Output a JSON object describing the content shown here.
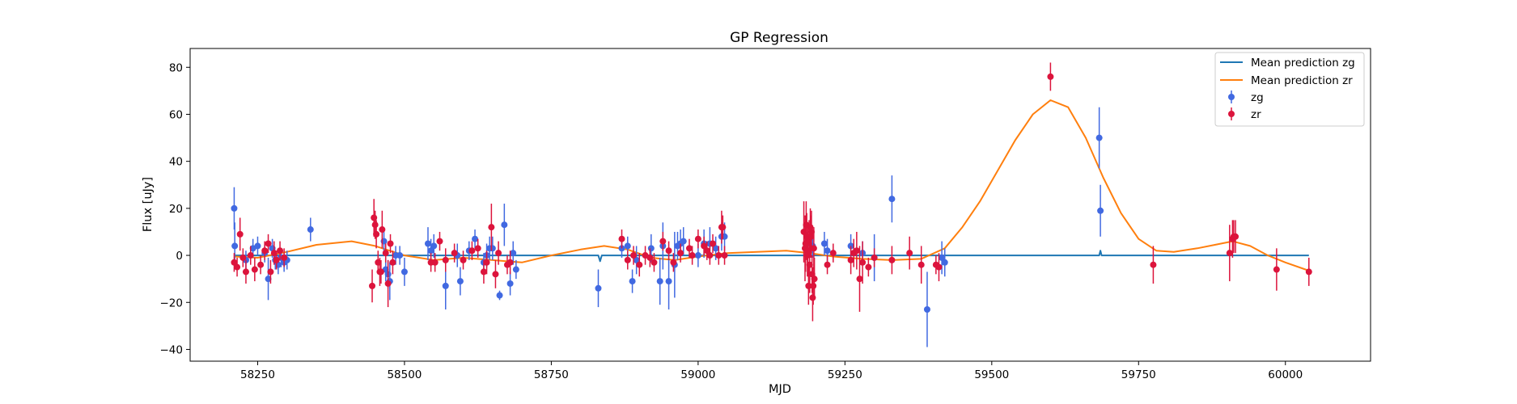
{
  "chart_data": {
    "type": "scatter",
    "title": "GP Regression",
    "xlabel": "MJD",
    "ylabel": "Flux [uJy]",
    "xlim": [
      58135,
      60145
    ],
    "ylim": [
      -45,
      88
    ],
    "xticks": [
      58250,
      58500,
      58750,
      59000,
      59250,
      59500,
      59750,
      60000
    ],
    "yticks": [
      -40,
      -20,
      0,
      20,
      40,
      60,
      80
    ],
    "grid": false,
    "legend_position": "top-right",
    "legend": {
      "line_zg": "Mean prediction zg",
      "line_zr": "Mean prediction zr",
      "points_zg": "zg",
      "points_zr": "zr"
    },
    "colors": {
      "line_zg": "#1f77b4",
      "line_zr": "#ff7f0e",
      "points_zg": "#4169e1",
      "points_zr": "#dc143c"
    },
    "mean_prediction_zg": {
      "x": [
        58210,
        58830,
        58833,
        58836,
        59683,
        59685,
        59687,
        60040
      ],
      "y": [
        0,
        0,
        -2.5,
        0,
        0,
        2,
        0,
        0
      ]
    },
    "mean_prediction_zr": {
      "x": [
        58210,
        58250,
        58300,
        58350,
        58410,
        58450,
        58500,
        58550,
        58600,
        58650,
        58700,
        58750,
        58800,
        58840,
        58880,
        58920,
        58960,
        59000,
        59050,
        59100,
        59150,
        59190,
        59230,
        59280,
        59330,
        59380,
        59420,
        59450,
        59480,
        59510,
        59540,
        59570,
        59600,
        59630,
        59660,
        59690,
        59720,
        59750,
        59780,
        59810,
        59850,
        59880,
        59910,
        59940,
        59970,
        60000,
        60040
      ],
      "y": [
        -0.5,
        -1,
        1.5,
        4.5,
        6,
        4,
        0,
        -2,
        -1,
        -2,
        -3,
        0,
        2.5,
        4,
        2.5,
        -1,
        -2,
        -0.5,
        1,
        1.5,
        2,
        1,
        -0.5,
        -1.5,
        -2,
        -1.5,
        3,
        12,
        23,
        36,
        49,
        60,
        66,
        63,
        50,
        33,
        18,
        7,
        2,
        1.5,
        3,
        4.5,
        6,
        4,
        0,
        -3,
        -6.5
      ]
    },
    "series_zg": {
      "x": [
        58210,
        58211,
        58230,
        58242,
        58250,
        58262,
        58268,
        58275,
        58280,
        58285,
        58290,
        58295,
        58300,
        58340,
        58465,
        58468,
        58472,
        58475,
        58485,
        58492,
        58500,
        58540,
        58545,
        58550,
        58570,
        58590,
        58595,
        58610,
        58620,
        58635,
        58640,
        58645,
        58650,
        58662,
        58670,
        58680,
        58685,
        58690,
        58830,
        58870,
        58880,
        58888,
        58895,
        58920,
        58935,
        58940,
        58950,
        58960,
        58965,
        58970,
        58975,
        59000,
        59010,
        59020,
        59030,
        59040,
        59045,
        59185,
        59195,
        59215,
        59220,
        59260,
        59280,
        59300,
        59330,
        59390,
        59415,
        59420,
        59683,
        59685
      ],
      "y": [
        20,
        4,
        -2,
        3,
        4,
        1,
        -10,
        3,
        -2,
        -4,
        -1,
        -3,
        -2,
        11,
        6,
        -6,
        -8,
        -11,
        0,
        0,
        -7,
        5,
        2,
        4,
        -13,
        0,
        -11,
        2,
        7,
        -3,
        0,
        3,
        3,
        -17,
        13,
        -12,
        1,
        -6,
        -14,
        3,
        4,
        -11,
        -2,
        3,
        -11,
        4,
        -11,
        -4,
        4,
        5,
        6,
        0,
        5,
        5,
        3,
        8,
        8,
        5,
        4,
        5,
        2,
        4,
        1,
        -1,
        24,
        -23,
        -1,
        -3,
        50,
        19
      ],
      "yerr": [
        9,
        10,
        4,
        4,
        4,
        4,
        9,
        4,
        4,
        4,
        4,
        4,
        4,
        5,
        5,
        5,
        6,
        8,
        4,
        4,
        6,
        7,
        5,
        5,
        10,
        5,
        6,
        4,
        4,
        4,
        5,
        5,
        5,
        2,
        9,
        5,
        5,
        4,
        8,
        4,
        4,
        5,
        6,
        6,
        10,
        10,
        12,
        14,
        6,
        6,
        6,
        5,
        6,
        7,
        5,
        6,
        6,
        5,
        5,
        5,
        5,
        5,
        5,
        10,
        10,
        16,
        7,
        6,
        13,
        11
      ]
    },
    "series_zr": {
      "x": [
        58210,
        58215,
        58220,
        58225,
        58230,
        58238,
        58245,
        58255,
        58262,
        58268,
        58272,
        58278,
        58282,
        58288,
        58295,
        58445,
        58448,
        58450,
        58452,
        58455,
        58458,
        58460,
        58462,
        58468,
        58472,
        58476,
        58480,
        58545,
        58552,
        58560,
        58570,
        58585,
        58600,
        58615,
        58625,
        58635,
        58640,
        58648,
        58655,
        58660,
        58675,
        58680,
        58870,
        58880,
        58890,
        58900,
        58910,
        58918,
        58925,
        58940,
        58950,
        58958,
        58970,
        58985,
        58990,
        59000,
        59010,
        59015,
        59020,
        59025,
        59035,
        59040,
        59042,
        59045,
        59180,
        59182,
        59183,
        59184,
        59185,
        59186,
        59187,
        59188,
        59189,
        59190,
        59191,
        59192,
        59193,
        59194,
        59195,
        59196,
        59197,
        59198,
        59220,
        59230,
        59260,
        59265,
        59270,
        59275,
        59280,
        59290,
        59300,
        59330,
        59360,
        59380,
        59405,
        59410,
        59600,
        59775,
        59905,
        59910,
        59912,
        59915,
        59985,
        60040
      ],
      "y": [
        -3,
        -5,
        9,
        -1,
        -7,
        0,
        -6,
        -4,
        2,
        5,
        -7,
        1,
        -2,
        2,
        -1,
        -13,
        16,
        13,
        9,
        -3,
        -7,
        -7,
        11,
        1,
        -12,
        5,
        -3,
        -3,
        -3,
        6,
        -2,
        1,
        -2,
        2,
        3,
        -7,
        -3,
        12,
        -8,
        1,
        -4,
        -3,
        7,
        -2,
        0,
        -4,
        0,
        -1,
        -3,
        6,
        2,
        -3,
        1,
        3,
        0,
        7,
        4,
        2,
        0,
        5,
        0,
        12,
        12,
        0,
        10,
        3,
        5,
        13,
        8,
        0,
        2,
        -13,
        7,
        -4,
        12,
        8,
        10,
        -8,
        -18,
        -13,
        3,
        -10,
        -4,
        1,
        -2,
        1,
        2,
        -10,
        -3,
        -5,
        -1,
        -2,
        1,
        -4,
        -4,
        -5,
        76,
        -4,
        1,
        7,
        8,
        8,
        -6,
        -7
      ],
      "yerr": [
        4,
        4,
        7,
        4,
        5,
        4,
        5,
        4,
        4,
        4,
        5,
        5,
        4,
        4,
        4,
        7,
        8,
        6,
        6,
        5,
        6,
        5,
        8,
        4,
        10,
        4,
        5,
        4,
        4,
        4,
        5,
        4,
        4,
        4,
        4,
        5,
        5,
        10,
        6,
        5,
        4,
        5,
        4,
        4,
        4,
        5,
        4,
        4,
        4,
        4,
        4,
        4,
        4,
        4,
        4,
        4,
        4,
        4,
        4,
        4,
        4,
        7,
        5,
        4,
        13,
        14,
        12,
        10,
        10,
        9,
        11,
        8,
        8,
        12,
        8,
        9,
        9,
        8,
        10,
        8,
        9,
        9,
        4,
        4,
        6,
        6,
        8,
        14,
        9,
        4,
        4,
        6,
        7,
        8,
        4,
        6,
        6,
        8,
        12,
        8,
        7,
        7,
        9,
        6
      ]
    }
  }
}
